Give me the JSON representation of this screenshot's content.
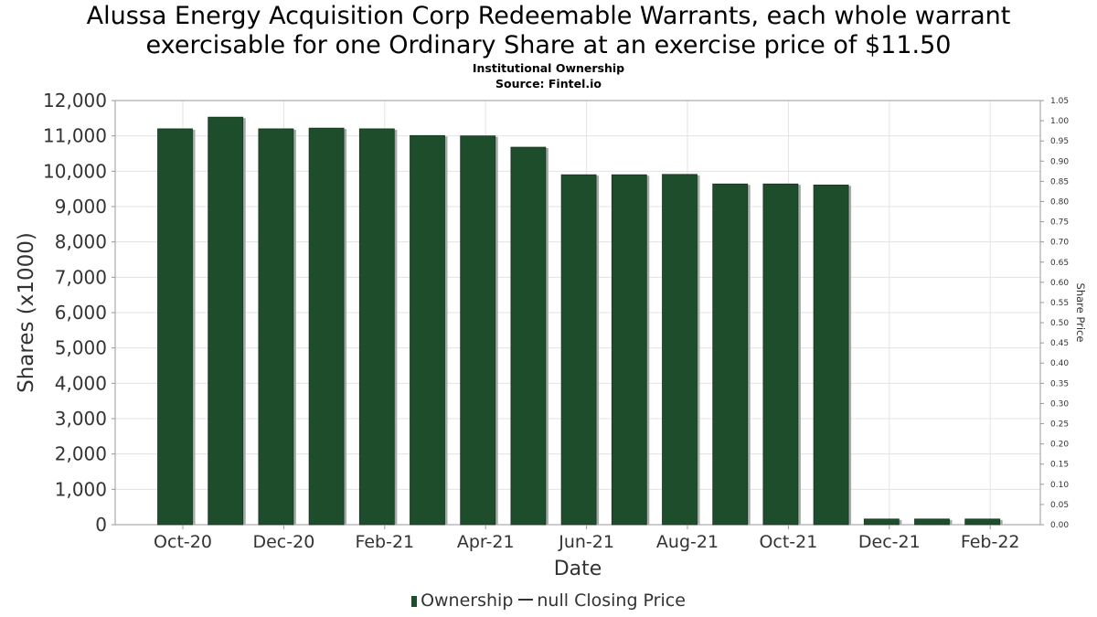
{
  "chart_data": {
    "type": "bar",
    "title_line1": "Alussa Energy Acquisition Corp Redeemable Warrants, each whole warrant",
    "title_line2": "exercisable for one Ordinary Share at an exercise price of $11.50",
    "subtitle_line1": "Institutional Ownership",
    "subtitle_line2": "Source: Fintel.io",
    "xlabel": "Date",
    "ylabel": "Shares (x1000)",
    "ylabel_right": "Share Price",
    "ylim": [
      0,
      12000
    ],
    "ylim_right": [
      0,
      1.05
    ],
    "yticks": [
      "0",
      "1,000",
      "2,000",
      "3,000",
      "4,000",
      "5,000",
      "6,000",
      "7,000",
      "8,000",
      "9,000",
      "10,000",
      "11,000",
      "12,000"
    ],
    "yticks_right": [
      "0.00",
      "0.05",
      "0.10",
      "0.15",
      "0.20",
      "0.25",
      "0.30",
      "0.35",
      "0.40",
      "0.45",
      "0.50",
      "0.55",
      "0.60",
      "0.65",
      "0.70",
      "0.75",
      "0.80",
      "0.85",
      "0.90",
      "0.95",
      "1.00",
      "1.05"
    ],
    "xticks": [
      "Oct-20",
      "Dec-20",
      "Feb-21",
      "Apr-21",
      "Jun-21",
      "Aug-21",
      "Oct-21",
      "Dec-21",
      "Feb-22"
    ],
    "grid": true,
    "legend_position": "bottom",
    "series": [
      {
        "name": "Ownership",
        "color": "#1e4d2b",
        "values": [
          11200,
          11530,
          11200,
          11220,
          11200,
          11010,
          11000,
          10680,
          9900,
          9900,
          9910,
          9640,
          9640,
          9610,
          160,
          160,
          160
        ]
      }
    ],
    "legend": {
      "ownership_label": "Ownership",
      "price_label": "null Closing Price"
    }
  }
}
